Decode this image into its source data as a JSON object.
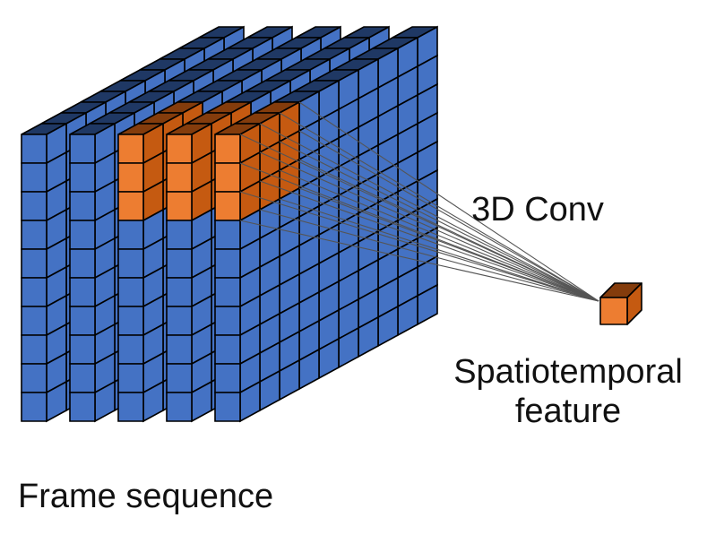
{
  "labels": {
    "operation": "3D Conv",
    "output_line1": "Spatiotemporal",
    "output_line2": "feature",
    "input": "Frame sequence"
  },
  "diagram": {
    "frame_count": 5,
    "grid_rows": 10,
    "grid_cols": 10,
    "kernel_size": 3,
    "kernel_frames": 3,
    "kernel_start_frame": 2,
    "colors": {
      "cube_front": "#4472c4",
      "cube_top": "#1f3864",
      "cube_side": "#2e5597",
      "kernel_front": "#ed7d31",
      "kernel_top": "#843c0c",
      "kernel_side": "#c55a11",
      "outline": "#000000",
      "connector": "#555555"
    }
  }
}
